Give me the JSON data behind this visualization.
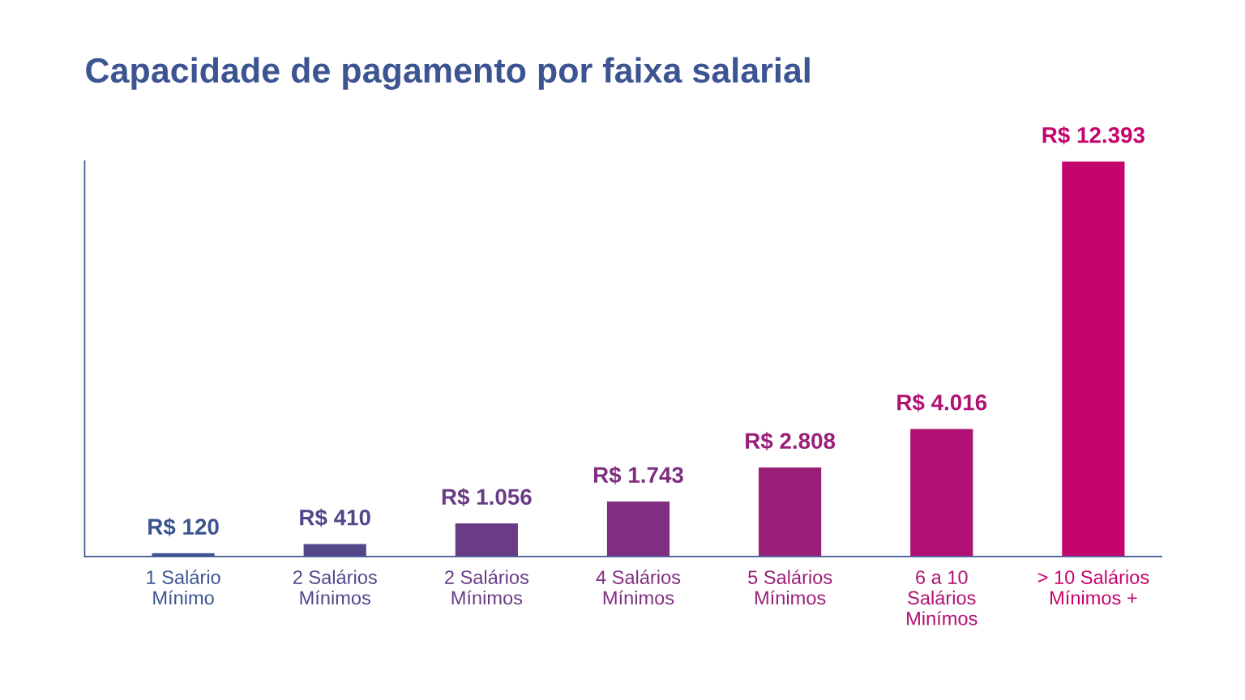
{
  "chart_data": {
    "type": "bar",
    "title": "Capacidade de pagamento por faixa salarial",
    "categories": [
      "1 Salário\nMínimo",
      "2 Salários\nMínimos",
      "2 Salários\nMínimos",
      "4 Salários\nMínimos",
      "5 Salários\nMínimos",
      "6 a 10\nSalários\nMinímos",
      "> 10 Salários\nMínimos +"
    ],
    "values": [
      120,
      410,
      1056,
      1743,
      2808,
      4016,
      12393
    ],
    "value_labels": [
      "R$ 120",
      "R$ 410",
      "R$ 1.056",
      "R$ 1.743",
      "R$ 2.808",
      "R$ 4.016",
      "R$ 12.393"
    ],
    "colors": [
      "#3c5491",
      "#54468a",
      "#6a3c85",
      "#802f80",
      "#9a1f78",
      "#b01173",
      "#c5036d"
    ],
    "tick_labels": "x",
    "grid": false
  }
}
